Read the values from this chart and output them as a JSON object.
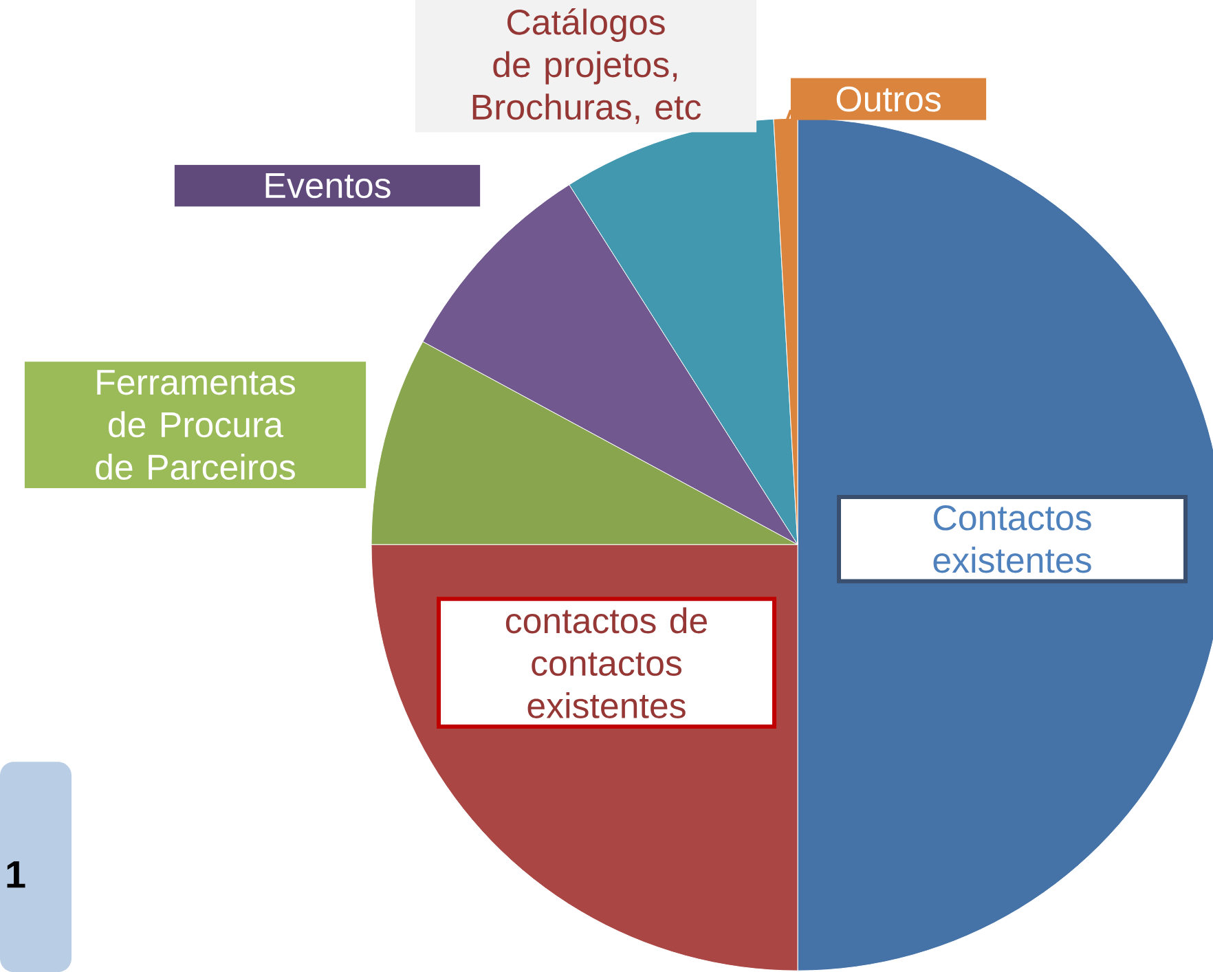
{
  "chart_data": {
    "type": "pie",
    "categories": [
      "Contactos existentes",
      "contactos de contactos existentes",
      "Ferramentas de Procura de Parceiros",
      "Eventos",
      "Catálogos de projetos, Brochuras, etc",
      "Outros"
    ],
    "values": [
      50,
      25,
      7.9,
      8.1,
      8.1,
      0.9
    ],
    "colors": [
      "#4572a7",
      "#aa4643",
      "#89a54e",
      "#71588f",
      "#4198af",
      "#db843d"
    ],
    "annotations": [
      "1"
    ]
  }
}
